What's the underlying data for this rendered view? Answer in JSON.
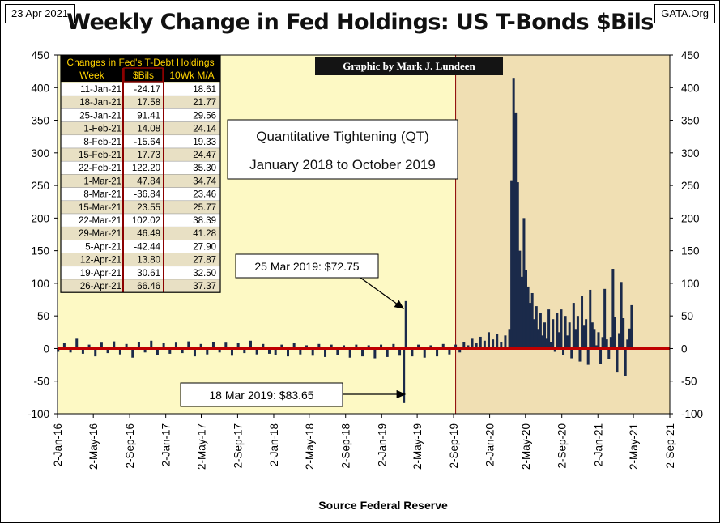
{
  "header": {
    "date": "23 Apr 2021",
    "site": "GATA.Org",
    "title": "Weekly Change in Fed Holdings: US T-Bonds $Bils"
  },
  "colors": {
    "plot_bg": "#fdf9c4",
    "shade_bg": "#f0dfb3",
    "bar": "#1b2a4a",
    "zero_line": "#c00000",
    "table_header_bg": "#000000",
    "table_header_text": "#ffd200",
    "table_row_alt": "#e8e0c4"
  },
  "credit": "Graphic by Mark J. Lundeen",
  "source_label": "Source Federal  Reserve",
  "qt_box": {
    "line1": "Quantitative Tightening (QT)",
    "line2": "January 2018 to October 2019"
  },
  "annotations": [
    {
      "text": "25 Mar 2019: $72.75"
    },
    {
      "text": "18 Mar 2019: $83.65"
    }
  ],
  "table": {
    "title": "Changes in Fed's T-Debt Holdings",
    "columns": [
      "Week",
      "$Bils",
      "10Wk M/A"
    ],
    "rows": [
      [
        "11-Jan-21",
        "-24.17",
        "18.61"
      ],
      [
        "18-Jan-21",
        "17.58",
        "21.77"
      ],
      [
        "25-Jan-21",
        "91.41",
        "29.56"
      ],
      [
        "1-Feb-21",
        "14.08",
        "24.14"
      ],
      [
        "8-Feb-21",
        "-15.64",
        "19.33"
      ],
      [
        "15-Feb-21",
        "17.73",
        "24.47"
      ],
      [
        "22-Feb-21",
        "122.20",
        "35.30"
      ],
      [
        "1-Mar-21",
        "47.84",
        "34.74"
      ],
      [
        "8-Mar-21",
        "-36.84",
        "23.46"
      ],
      [
        "15-Mar-21",
        "23.55",
        "25.77"
      ],
      [
        "22-Mar-21",
        "102.02",
        "38.39"
      ],
      [
        "29-Mar-21",
        "46.49",
        "41.28"
      ],
      [
        "5-Apr-21",
        "-42.44",
        "27.90"
      ],
      [
        "12-Apr-21",
        "13.80",
        "27.87"
      ],
      [
        "19-Apr-21",
        "30.61",
        "32.50"
      ],
      [
        "26-Apr-21",
        "66.46",
        "37.37"
      ]
    ]
  },
  "chart_data": {
    "type": "bar",
    "title": "Weekly Change in Fed Holdings: US T-Bonds $Bils",
    "xlabel": "Source Federal  Reserve",
    "ylabel": "",
    "ylim": [
      -100,
      450
    ],
    "yticks": [
      -100,
      -50,
      0,
      50,
      100,
      150,
      200,
      250,
      300,
      350,
      400,
      450
    ],
    "xlim": [
      "2016-01-02",
      "2021-09-02"
    ],
    "x_tick_labels": [
      "2-Jan-16",
      "2-May-16",
      "2-Sep-16",
      "2-Jan-17",
      "2-May-17",
      "2-Sep-17",
      "2-Jan-18",
      "2-May-18",
      "2-Sep-18",
      "2-Jan-19",
      "2-May-19",
      "2-Sep-19",
      "2-Jan-20",
      "2-May-20",
      "2-Sep-20",
      "2-Jan-21",
      "2-May-21",
      "2-Sep-21"
    ],
    "x_tick_dates": [
      "2016-01-02",
      "2016-05-02",
      "2016-09-02",
      "2017-01-02",
      "2017-05-02",
      "2017-09-02",
      "2018-01-02",
      "2018-05-02",
      "2018-09-02",
      "2019-01-02",
      "2019-05-02",
      "2019-09-02",
      "2020-01-02",
      "2020-05-02",
      "2020-09-02",
      "2021-01-02",
      "2021-05-02",
      "2021-09-02"
    ],
    "shaded_region": [
      "2019-09-09",
      "2021-09-02"
    ],
    "grid": false,
    "series": [
      {
        "points": [
          [
            "2016-01-04",
            -5
          ],
          [
            "2016-01-25",
            8
          ],
          [
            "2016-02-15",
            -6
          ],
          [
            "2016-03-07",
            15
          ],
          [
            "2016-03-28",
            -8
          ],
          [
            "2016-04-18",
            6
          ],
          [
            "2016-05-09",
            -12
          ],
          [
            "2016-05-30",
            9
          ],
          [
            "2016-06-20",
            -7
          ],
          [
            "2016-07-11",
            11
          ],
          [
            "2016-08-01",
            -9
          ],
          [
            "2016-08-22",
            7
          ],
          [
            "2016-09-12",
            -14
          ],
          [
            "2016-10-03",
            10
          ],
          [
            "2016-10-24",
            -6
          ],
          [
            "2016-11-14",
            12
          ],
          [
            "2016-12-05",
            -10
          ],
          [
            "2016-12-26",
            8
          ],
          [
            "2017-01-16",
            -8
          ],
          [
            "2017-02-06",
            9
          ],
          [
            "2017-02-27",
            -7
          ],
          [
            "2017-03-20",
            11
          ],
          [
            "2017-04-10",
            -12
          ],
          [
            "2017-05-01",
            7
          ],
          [
            "2017-05-22",
            -9
          ],
          [
            "2017-06-12",
            10
          ],
          [
            "2017-07-03",
            -6
          ],
          [
            "2017-07-24",
            9
          ],
          [
            "2017-08-14",
            -11
          ],
          [
            "2017-09-04",
            8
          ],
          [
            "2017-09-25",
            -7
          ],
          [
            "2017-10-16",
            12
          ],
          [
            "2017-11-06",
            -9
          ],
          [
            "2017-11-27",
            7
          ],
          [
            "2017-12-18",
            -8
          ],
          [
            "2018-01-08",
            -10
          ],
          [
            "2018-01-29",
            6
          ],
          [
            "2018-02-19",
            -12
          ],
          [
            "2018-03-12",
            8
          ],
          [
            "2018-04-02",
            -9
          ],
          [
            "2018-04-23",
            5
          ],
          [
            "2018-05-14",
            -11
          ],
          [
            "2018-06-04",
            7
          ],
          [
            "2018-06-25",
            -13
          ],
          [
            "2018-07-16",
            6
          ],
          [
            "2018-08-06",
            -10
          ],
          [
            "2018-08-27",
            5
          ],
          [
            "2018-09-17",
            -14
          ],
          [
            "2018-10-08",
            6
          ],
          [
            "2018-10-29",
            -12
          ],
          [
            "2018-11-19",
            5
          ],
          [
            "2018-12-10",
            -15
          ],
          [
            "2018-12-31",
            6
          ],
          [
            "2019-01-21",
            -13
          ],
          [
            "2019-02-11",
            7
          ],
          [
            "2019-03-04",
            -11
          ],
          [
            "2019-03-18",
            -83.65
          ],
          [
            "2019-03-25",
            72.75
          ],
          [
            "2019-04-15",
            -12
          ],
          [
            "2019-05-06",
            6
          ],
          [
            "2019-05-27",
            -14
          ],
          [
            "2019-06-17",
            5
          ],
          [
            "2019-07-08",
            -12
          ],
          [
            "2019-07-29",
            7
          ],
          [
            "2019-08-19",
            -9
          ],
          [
            "2019-09-09",
            6
          ],
          [
            "2019-09-23",
            -6
          ],
          [
            "2019-10-07",
            10
          ],
          [
            "2019-10-21",
            5
          ],
          [
            "2019-11-04",
            15
          ],
          [
            "2019-11-18",
            8
          ],
          [
            "2019-12-02",
            18
          ],
          [
            "2019-12-16",
            12
          ],
          [
            "2019-12-30",
            25
          ],
          [
            "2020-01-13",
            14
          ],
          [
            "2020-01-27",
            22
          ],
          [
            "2020-02-10",
            10
          ],
          [
            "2020-02-24",
            20
          ],
          [
            "2020-03-09",
            30
          ],
          [
            "2020-03-16",
            258
          ],
          [
            "2020-03-23",
            415
          ],
          [
            "2020-03-30",
            362
          ],
          [
            "2020-04-06",
            255
          ],
          [
            "2020-04-13",
            150
          ],
          [
            "2020-04-20",
            110
          ],
          [
            "2020-04-27",
            200
          ],
          [
            "2020-05-04",
            120
          ],
          [
            "2020-05-11",
            95
          ],
          [
            "2020-05-18",
            70
          ],
          [
            "2020-05-25",
            85
          ],
          [
            "2020-06-01",
            45
          ],
          [
            "2020-06-08",
            65
          ],
          [
            "2020-06-15",
            30
          ],
          [
            "2020-06-22",
            55
          ],
          [
            "2020-06-29",
            20
          ],
          [
            "2020-07-06",
            40
          ],
          [
            "2020-07-13",
            15
          ],
          [
            "2020-07-20",
            60
          ],
          [
            "2020-07-27",
            10
          ],
          [
            "2020-08-03",
            45
          ],
          [
            "2020-08-10",
            -5
          ],
          [
            "2020-08-17",
            55
          ],
          [
            "2020-08-24",
            25
          ],
          [
            "2020-08-31",
            60
          ],
          [
            "2020-09-07",
            -10
          ],
          [
            "2020-09-14",
            50
          ],
          [
            "2020-09-21",
            20
          ],
          [
            "2020-09-28",
            40
          ],
          [
            "2020-10-05",
            -15
          ],
          [
            "2020-10-12",
            70
          ],
          [
            "2020-10-19",
            30
          ],
          [
            "2020-10-26",
            50
          ],
          [
            "2020-11-02",
            -20
          ],
          [
            "2020-11-09",
            80
          ],
          [
            "2020-11-16",
            35
          ],
          [
            "2020-11-23",
            45
          ],
          [
            "2020-11-30",
            -25
          ],
          [
            "2020-12-07",
            90
          ],
          [
            "2020-12-14",
            40
          ],
          [
            "2020-12-21",
            30
          ],
          [
            "2020-12-28",
            5
          ],
          [
            "2021-01-04",
            25
          ],
          [
            "2021-01-11",
            -24.17
          ],
          [
            "2021-01-18",
            17.58
          ],
          [
            "2021-01-25",
            91.41
          ],
          [
            "2021-02-01",
            14.08
          ],
          [
            "2021-02-08",
            -15.64
          ],
          [
            "2021-02-15",
            17.73
          ],
          [
            "2021-02-22",
            122.2
          ],
          [
            "2021-03-01",
            47.84
          ],
          [
            "2021-03-08",
            -36.84
          ],
          [
            "2021-03-15",
            23.55
          ],
          [
            "2021-03-22",
            102.02
          ],
          [
            "2021-03-29",
            46.49
          ],
          [
            "2021-04-05",
            -42.44
          ],
          [
            "2021-04-12",
            13.8
          ],
          [
            "2021-04-19",
            30.61
          ],
          [
            "2021-04-26",
            66.46
          ]
        ]
      }
    ]
  }
}
